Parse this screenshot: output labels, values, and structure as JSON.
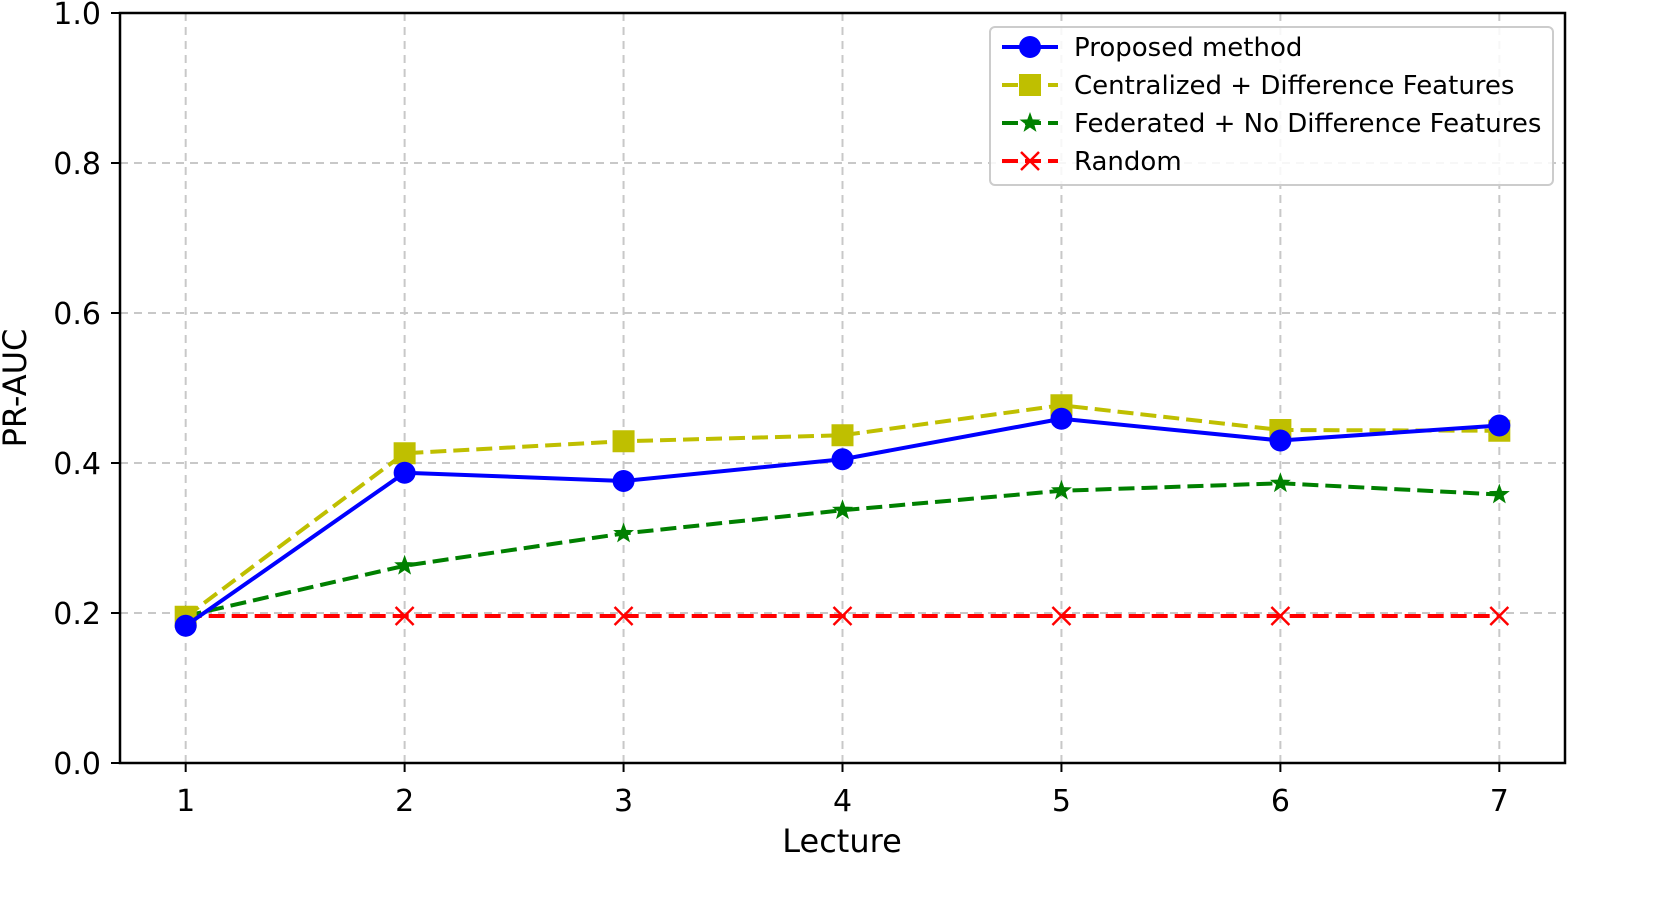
{
  "chart_data": {
    "type": "line",
    "title": "",
    "xlabel": "Lecture",
    "ylabel": "PR-AUC",
    "x": [
      1,
      2,
      3,
      4,
      5,
      6,
      7
    ],
    "x_ticks": [
      "1",
      "2",
      "3",
      "4",
      "5",
      "6",
      "7"
    ],
    "xlim": [
      0.7,
      7.3
    ],
    "ylim": [
      0.0,
      1.0
    ],
    "y_ticks": [
      "0.0",
      "0.2",
      "0.4",
      "0.6",
      "0.8",
      "1.0"
    ],
    "grid": true,
    "legend_position": "top-right",
    "series": [
      {
        "name": "Proposed method",
        "values": [
          0.183,
          0.387,
          0.376,
          0.405,
          0.459,
          0.43,
          0.45
        ],
        "color": "#0000ff",
        "line_style": "solid",
        "marker": "circle"
      },
      {
        "name": "Centralized + Difference Features",
        "values": [
          0.195,
          0.413,
          0.429,
          0.437,
          0.477,
          0.444,
          0.443
        ],
        "color": "#bfbf00",
        "line_style": "dashed",
        "marker": "square"
      },
      {
        "name": "Federated + No Difference Features",
        "values": [
          0.196,
          0.263,
          0.306,
          0.337,
          0.363,
          0.373,
          0.358
        ],
        "color": "#008000",
        "line_style": "dashed",
        "marker": "star"
      },
      {
        "name": "Random",
        "values": [
          0.196,
          0.196,
          0.196,
          0.196,
          0.196,
          0.196,
          0.196
        ],
        "color": "#ff0000",
        "line_style": "dashed",
        "marker": "x"
      }
    ]
  }
}
